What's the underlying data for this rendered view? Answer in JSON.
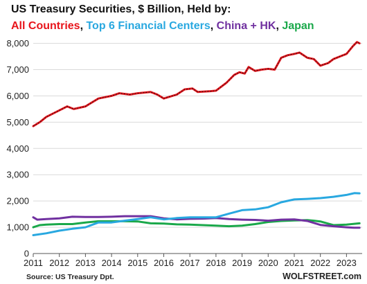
{
  "chart_data": {
    "type": "line",
    "title": "US Treasury Securities, $ Billion, Held by:",
    "subtitle_parts": [
      {
        "text": "All Countries",
        "color": "#e8141b"
      },
      {
        "text": ", ",
        "color": "#111111"
      },
      {
        "text": "Top 6 Financial Centers",
        "color": "#29a8e0"
      },
      {
        "text": ", ",
        "color": "#111111"
      },
      {
        "text": "China + HK",
        "color": "#7030a0"
      },
      {
        "text": ", ",
        "color": "#111111"
      },
      {
        "text": "Japan",
        "color": "#1aa84a"
      }
    ],
    "source": "Source: US Treasury  Dpt.",
    "brand": "WOLFSTREET.com",
    "xlim": [
      2011,
      2023.6
    ],
    "ylim": [
      0,
      8200
    ],
    "x_ticks": [
      2011,
      2012,
      2013,
      2014,
      2015,
      2016,
      2017,
      2018,
      2019,
      2020,
      2021,
      2022,
      2023
    ],
    "y_ticks": [
      {
        "value": 0,
        "label": "0"
      },
      {
        "value": 1000,
        "label": "1,000"
      },
      {
        "value": 2000,
        "label": "2,000"
      },
      {
        "value": 3000,
        "label": "3,000"
      },
      {
        "value": 4000,
        "label": "4,000"
      },
      {
        "value": 5000,
        "label": "5,000"
      },
      {
        "value": 6000,
        "label": "6,000"
      },
      {
        "value": 7000,
        "label": "7,000"
      },
      {
        "value": 8000,
        "label": "8,000"
      }
    ],
    "grid": "horizontal",
    "series": [
      {
        "color": "#1aa84a",
        "points": [
          [
            2011,
            1000
          ],
          [
            2011.25,
            1080
          ],
          [
            2011.5,
            1100
          ],
          [
            2012,
            1120
          ],
          [
            2012.5,
            1120
          ],
          [
            2013,
            1180
          ],
          [
            2013.5,
            1230
          ],
          [
            2014,
            1230
          ],
          [
            2014.5,
            1230
          ],
          [
            2015,
            1220
          ],
          [
            2015.5,
            1150
          ],
          [
            2016,
            1140
          ],
          [
            2016.5,
            1110
          ],
          [
            2017,
            1100
          ],
          [
            2017.5,
            1080
          ],
          [
            2018,
            1060
          ],
          [
            2018.5,
            1040
          ],
          [
            2019,
            1060
          ],
          [
            2019.5,
            1120
          ],
          [
            2020,
            1200
          ],
          [
            2020.5,
            1240
          ],
          [
            2021,
            1260
          ],
          [
            2021.5,
            1270
          ],
          [
            2021.75,
            1250
          ],
          [
            2022,
            1220
          ],
          [
            2022.5,
            1080
          ],
          [
            2023,
            1100
          ],
          [
            2023.3,
            1130
          ],
          [
            2023.5,
            1150
          ]
        ]
      },
      {
        "color": "#7030a0",
        "points": [
          [
            2011,
            1380
          ],
          [
            2011.15,
            1290
          ],
          [
            2011.5,
            1310
          ],
          [
            2012,
            1340
          ],
          [
            2012.5,
            1400
          ],
          [
            2013,
            1390
          ],
          [
            2013.5,
            1390
          ],
          [
            2014,
            1400
          ],
          [
            2014.5,
            1420
          ],
          [
            2015,
            1420
          ],
          [
            2015.5,
            1420
          ],
          [
            2016,
            1340
          ],
          [
            2016.5,
            1300
          ],
          [
            2017,
            1320
          ],
          [
            2017.5,
            1330
          ],
          [
            2018,
            1350
          ],
          [
            2018.5,
            1310
          ],
          [
            2019,
            1290
          ],
          [
            2019.5,
            1280
          ],
          [
            2020,
            1250
          ],
          [
            2020.5,
            1290
          ],
          [
            2021,
            1300
          ],
          [
            2021.5,
            1240
          ],
          [
            2022,
            1090
          ],
          [
            2022.5,
            1040
          ],
          [
            2023,
            1000
          ],
          [
            2023.3,
            980
          ],
          [
            2023.5,
            980
          ]
        ]
      },
      {
        "color": "#29a8e0",
        "points": [
          [
            2011,
            700
          ],
          [
            2011.5,
            770
          ],
          [
            2012,
            870
          ],
          [
            2012.5,
            940
          ],
          [
            2013,
            1000
          ],
          [
            2013.5,
            1180
          ],
          [
            2014,
            1180
          ],
          [
            2014.5,
            1250
          ],
          [
            2015,
            1310
          ],
          [
            2015.5,
            1380
          ],
          [
            2016,
            1300
          ],
          [
            2016.5,
            1350
          ],
          [
            2017,
            1380
          ],
          [
            2017.5,
            1380
          ],
          [
            2018,
            1380
          ],
          [
            2018.5,
            1520
          ],
          [
            2019,
            1650
          ],
          [
            2019.5,
            1680
          ],
          [
            2020,
            1760
          ],
          [
            2020.5,
            1950
          ],
          [
            2021,
            2060
          ],
          [
            2021.5,
            2080
          ],
          [
            2022,
            2110
          ],
          [
            2022.5,
            2160
          ],
          [
            2023,
            2230
          ],
          [
            2023.3,
            2300
          ],
          [
            2023.5,
            2290
          ]
        ]
      },
      {
        "color": "#e8141b",
        "points": [
          [
            2011,
            4850
          ],
          [
            2011.25,
            5000
          ],
          [
            2011.5,
            5200
          ],
          [
            2012,
            5450
          ],
          [
            2012.3,
            5600
          ],
          [
            2012.55,
            5500
          ],
          [
            2013,
            5600
          ],
          [
            2013.5,
            5900
          ],
          [
            2014,
            6000
          ],
          [
            2014.3,
            6100
          ],
          [
            2014.7,
            6050
          ],
          [
            2015,
            6100
          ],
          [
            2015.5,
            6150
          ],
          [
            2015.75,
            6050
          ],
          [
            2016,
            5900
          ],
          [
            2016.5,
            6050
          ],
          [
            2016.8,
            6250
          ],
          [
            2017.1,
            6280
          ],
          [
            2017.3,
            6150
          ],
          [
            2017.8,
            6180
          ],
          [
            2018,
            6200
          ],
          [
            2018.4,
            6500
          ],
          [
            2018.7,
            6800
          ],
          [
            2018.9,
            6900
          ],
          [
            2019.1,
            6850
          ],
          [
            2019.25,
            7100
          ],
          [
            2019.5,
            6950
          ],
          [
            2019.75,
            7000
          ],
          [
            2020,
            7030
          ],
          [
            2020.25,
            7000
          ],
          [
            2020.5,
            7450
          ],
          [
            2020.75,
            7550
          ],
          [
            2021,
            7600
          ],
          [
            2021.2,
            7650
          ],
          [
            2021.5,
            7450
          ],
          [
            2021.75,
            7400
          ],
          [
            2022,
            7150
          ],
          [
            2022.3,
            7250
          ],
          [
            2022.5,
            7400
          ],
          [
            2022.75,
            7500
          ],
          [
            2023,
            7600
          ],
          [
            2023.25,
            7900
          ],
          [
            2023.4,
            8050
          ],
          [
            2023.5,
            8000
          ]
        ]
      }
    ]
  }
}
